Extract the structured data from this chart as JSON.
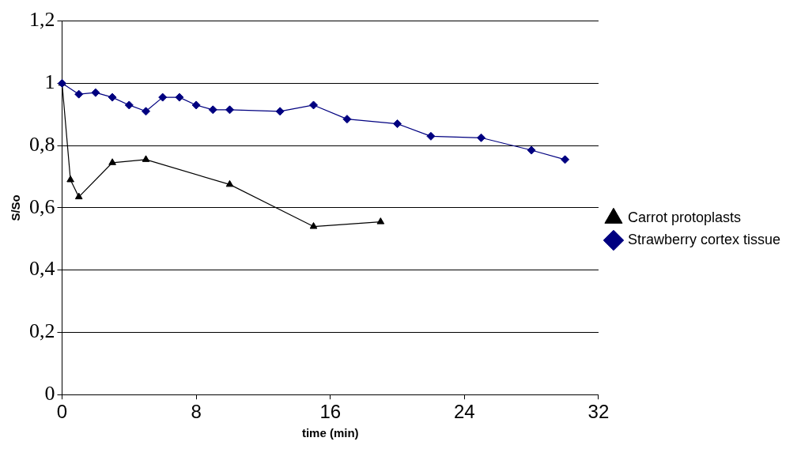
{
  "chart_data": {
    "type": "line",
    "xlabel": "time (min)",
    "ylabel": "S/So",
    "xlim": [
      0,
      32
    ],
    "xticks": [
      0,
      8,
      16,
      24,
      32
    ],
    "ylim": [
      0,
      1.2
    ],
    "yticks": [
      {
        "value": 0,
        "label": "0"
      },
      {
        "value": 0.2,
        "label": "0,2"
      },
      {
        "value": 0.4,
        "label": "0,4"
      },
      {
        "value": 0.6,
        "label": "0,6"
      },
      {
        "value": 0.8,
        "label": "0,8"
      },
      {
        "value": 1,
        "label": "1"
      },
      {
        "value": 1.2,
        "label": "1,2"
      }
    ],
    "grid": "y",
    "legend": "right",
    "series": [
      {
        "name": "Carrot protoplasts",
        "color": "#000000",
        "marker": "triangle",
        "x": [
          0,
          0.5,
          1,
          3,
          5,
          10,
          15,
          19
        ],
        "values": [
          1,
          0.69,
          0.635,
          0.745,
          0.755,
          0.675,
          0.54,
          0.555
        ]
      },
      {
        "name": "Strawberry cortex tissue",
        "color": "#000080",
        "marker": "diamond",
        "x": [
          0,
          1,
          2,
          3,
          4,
          5,
          6,
          7,
          8,
          9,
          10,
          13,
          15,
          17,
          20,
          22,
          25,
          28,
          30
        ],
        "values": [
          1,
          0.965,
          0.97,
          0.955,
          0.93,
          0.91,
          0.955,
          0.955,
          0.93,
          0.915,
          0.915,
          0.91,
          0.93,
          0.885,
          0.87,
          0.83,
          0.825,
          0.785,
          0.755
        ]
      }
    ]
  }
}
